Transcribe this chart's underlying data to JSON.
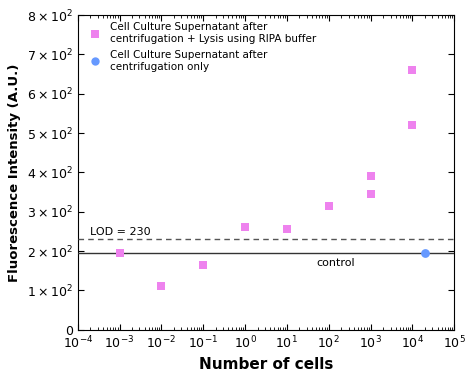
{
  "magenta_x": [
    0.001,
    0.01,
    0.1,
    1.0,
    10.0,
    100.0,
    1000.0,
    1000.0,
    10000.0,
    10000.0
  ],
  "magenta_y": [
    195,
    110,
    165,
    260,
    255,
    315,
    345,
    390,
    520,
    660
  ],
  "blue_scatter_x": [
    20000.0
  ],
  "blue_scatter_y": [
    195
  ],
  "lod_y": 230,
  "control_y": 195,
  "magenta_color": "#EE82EE",
  "blue_color": "#6699FF",
  "lod_color": "#555555",
  "control_color": "#333333",
  "xlabel": "Number of cells",
  "ylabel": "Fluorescence Intensity (A.U.)",
  "xlim_log": [
    -4,
    5
  ],
  "ylim": [
    0,
    800
  ],
  "yticks": [
    0,
    100,
    200,
    300,
    400,
    500,
    600,
    700,
    800
  ],
  "legend1_label": "Cell Culture Supernatant after\ncentrifugation + Lysis using RIPA buffer",
  "legend2_label": "Cell Culture Supernatant after\ncentrifugation only",
  "lod_label": "LOD = 230",
  "control_label": "control",
  "background_color": "#ffffff"
}
